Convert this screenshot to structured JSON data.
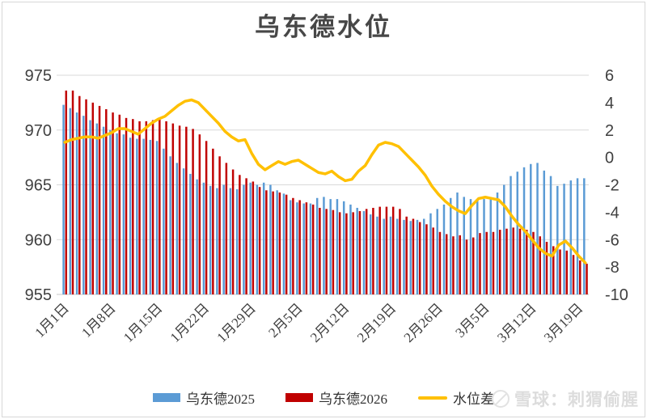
{
  "page": {
    "title": "乌东德水位",
    "watermark": "雪球：刺猬偷腥"
  },
  "legend": [
    {
      "label": "乌东德2025",
      "color": "#5B9BD5",
      "type": "bar"
    },
    {
      "label": "乌东德2026",
      "color": "#C00000",
      "type": "bar"
    },
    {
      "label": "水位差",
      "color": "#FFC000",
      "type": "line"
    }
  ],
  "chart_data": {
    "type": "combo",
    "title": "乌东德水位",
    "grid": true,
    "legend_position": "bottom",
    "x_start_date": "1月1日",
    "x_end_date": "3月20日",
    "x_tick_labels": [
      {
        "index": 0,
        "label": "1月1日"
      },
      {
        "index": 7,
        "label": "1月8日"
      },
      {
        "index": 14,
        "label": "1月15日"
      },
      {
        "index": 21,
        "label": "1月22日"
      },
      {
        "index": 28,
        "label": "1月29日"
      },
      {
        "index": 35,
        "label": "2月5日"
      },
      {
        "index": 42,
        "label": "2月12日"
      },
      {
        "index": 49,
        "label": "2月19日"
      },
      {
        "index": 56,
        "label": "2月26日"
      },
      {
        "index": 63,
        "label": "3月5日"
      },
      {
        "index": 70,
        "label": "3月12日"
      },
      {
        "index": 77,
        "label": "3月19日"
      }
    ],
    "left_axis": {
      "min": 955,
      "max": 975,
      "step": 5,
      "ticks": [
        "975",
        "970",
        "965",
        "960",
        "955"
      ]
    },
    "right_axis": {
      "min": -10,
      "max": 6,
      "step": 2,
      "ticks": [
        "6",
        "4",
        "2",
        "0",
        "-2",
        "-4",
        "-6",
        "-8",
        "-10"
      ]
    },
    "series": [
      {
        "name": "乌东德2025",
        "type": "bar",
        "axis": "left",
        "color": "#5B9BD5",
        "values": [
          972.3,
          972.0,
          971.6,
          971.3,
          970.9,
          970.6,
          970.3,
          970.0,
          969.7,
          969.6,
          969.3,
          969.2,
          969.2,
          969.1,
          969.0,
          968.3,
          967.6,
          967.0,
          966.5,
          966.0,
          965.5,
          965.2,
          964.9,
          964.7,
          965.0,
          964.7,
          964.6,
          965.0,
          965.2,
          965.0,
          965.2,
          965.0,
          964.5,
          964.2,
          963.6,
          963.4,
          963.3,
          963.3,
          963.8,
          963.9,
          963.7,
          963.7,
          963.5,
          963.2,
          962.9,
          962.6,
          962.3,
          962.1,
          961.9,
          962.1,
          961.9,
          961.8,
          961.7,
          961.8,
          961.9,
          962.4,
          962.8,
          963.2,
          963.8,
          964.3,
          963.9,
          963.7,
          963.7,
          963.7,
          963.8,
          964.3,
          965.0,
          965.8,
          966.2,
          966.6,
          966.9,
          967.0,
          966.3,
          965.8,
          964.9,
          965.1,
          965.4,
          965.6,
          965.6
        ]
      },
      {
        "name": "乌东德2026",
        "type": "bar",
        "axis": "left",
        "color": "#C00000",
        "values": [
          973.6,
          973.6,
          973.1,
          972.8,
          972.5,
          972.2,
          971.9,
          971.6,
          971.4,
          971.1,
          971.0,
          970.8,
          970.8,
          970.9,
          971.0,
          970.8,
          970.6,
          970.4,
          970.3,
          970.1,
          969.6,
          969.0,
          968.3,
          967.6,
          967.0,
          966.4,
          965.9,
          965.6,
          965.3,
          964.8,
          964.5,
          964.4,
          964.3,
          964.1,
          963.8,
          963.6,
          963.4,
          963.2,
          962.9,
          962.8,
          962.7,
          962.5,
          962.4,
          962.5,
          962.6,
          962.8,
          962.9,
          963.0,
          963.0,
          963.0,
          962.8,
          962.1,
          961.9,
          961.6,
          961.4,
          961.1,
          960.7,
          960.5,
          960.3,
          960.4,
          960.0,
          960.2,
          960.6,
          960.7,
          960.7,
          960.9,
          961.0,
          961.1,
          961.0,
          960.9,
          960.7,
          960.3,
          959.8,
          959.4,
          959.1,
          959.0,
          958.6,
          958.1,
          957.8
        ]
      },
      {
        "name": "水位差",
        "type": "line",
        "axis": "right",
        "color": "#FFC000",
        "values": [
          1.1,
          1.3,
          1.4,
          1.5,
          1.5,
          1.4,
          1.6,
          1.8,
          2.1,
          2.1,
          1.9,
          1.7,
          2.1,
          2.5,
          2.8,
          3.0,
          3.4,
          3.8,
          4.1,
          4.2,
          4.0,
          3.5,
          3.0,
          2.5,
          1.9,
          1.5,
          1.2,
          1.3,
          0.3,
          -0.5,
          -0.9,
          -0.6,
          -0.3,
          -0.5,
          -0.3,
          -0.2,
          -0.5,
          -0.8,
          -1.1,
          -1.2,
          -1.0,
          -1.4,
          -1.7,
          -1.6,
          -1.0,
          -0.6,
          0.2,
          0.9,
          1.1,
          1.0,
          0.8,
          0.3,
          -0.2,
          -0.7,
          -1.3,
          -2.1,
          -2.7,
          -3.2,
          -3.6,
          -3.9,
          -4.1,
          -3.5,
          -3.0,
          -2.9,
          -3.0,
          -3.1,
          -3.6,
          -4.3,
          -4.9,
          -5.4,
          -6.0,
          -6.6,
          -7.0,
          -7.2,
          -6.4,
          -6.1,
          -6.6,
          -7.2,
          -7.7
        ]
      }
    ],
    "plot_colors": {
      "gridline": "#d9d9d9",
      "axis_text": "#404040",
      "baseline": "#c9c9c9"
    }
  }
}
